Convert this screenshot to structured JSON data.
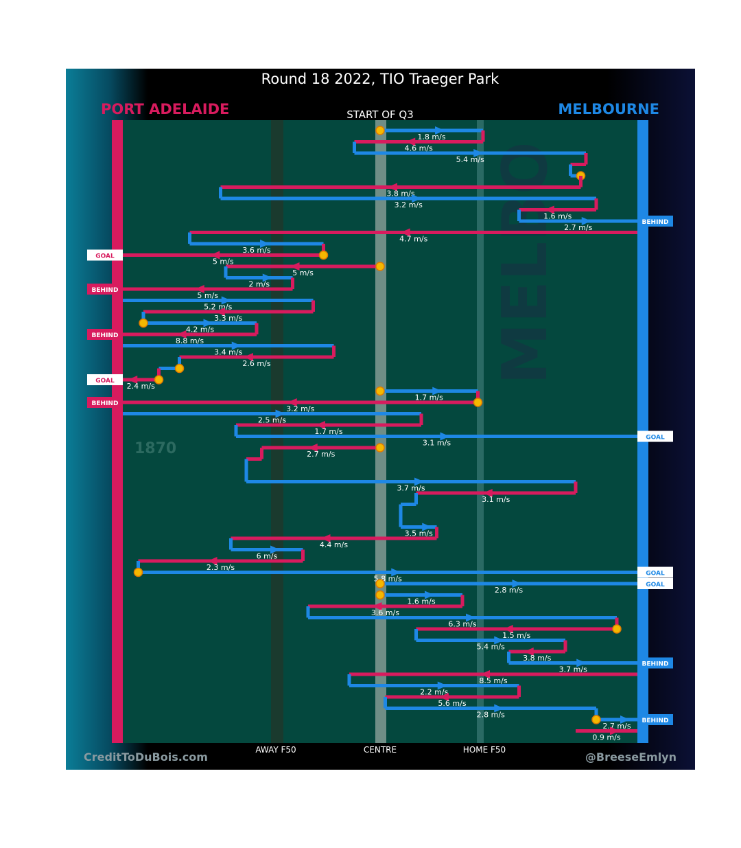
{
  "title": "Round 18 2022, TIO Traeger Park",
  "subtitle": "START OF Q3",
  "teams": {
    "left": {
      "name": "PORT ADELAIDE",
      "color": "#d81b5e"
    },
    "right": {
      "name": "MELBOURNE",
      "color": "#1e88e5"
    }
  },
  "zones": [
    "AWAY F50",
    "CENTRE",
    "HOME F50"
  ],
  "credits": {
    "left": "CreditToDuBois.com",
    "right": "@BreeseEmlyn"
  },
  "watermarks": {
    "left_year": "1870",
    "right_text": "MELBO"
  },
  "colors": {
    "field": "#04483e",
    "port": "#d81b5e",
    "melbourne": "#1e88e5",
    "dot": "#f5b800"
  },
  "chart_data": {
    "type": "diagram",
    "x_axis": {
      "min": 0,
      "max": 1,
      "labels": {
        "AWAY F50": 0.3,
        "CENTRE": 0.5,
        "HOME F50": 0.7
      }
    },
    "legs": [
      {
        "team": "M",
        "x0": 0.5,
        "x1": 0.7,
        "y": 0,
        "label": "1.8 m/s",
        "start_dot": true
      },
      {
        "team": "P",
        "x0": 0.7,
        "x1": 0.45,
        "y": 1,
        "label": "4.6 m/s"
      },
      {
        "team": "M",
        "x0": 0.45,
        "x1": 0.9,
        "y": 2,
        "label": "5.4 m/s"
      },
      {
        "team": "P",
        "x0": 0.9,
        "x1": 0.87,
        "y": 3,
        "label": ""
      },
      {
        "team": "M",
        "x0": 0.87,
        "x1": 0.89,
        "y": 4,
        "label": "",
        "end_dot": true
      },
      {
        "team": "P",
        "x0": 0.89,
        "x1": 0.19,
        "y": 5,
        "label": "3.8 m/s"
      },
      {
        "team": "M",
        "x0": 0.19,
        "x1": 0.92,
        "y": 6,
        "label": "3.2 m/s"
      },
      {
        "team": "P",
        "x0": 0.92,
        "x1": 0.77,
        "y": 7,
        "label": "1.6 m/s"
      },
      {
        "team": "M",
        "x0": 0.77,
        "x1": 1.0,
        "y": 8,
        "label": "2.7 m/s",
        "outcome": "BEHIND"
      },
      {
        "team": "P",
        "x0": 1.0,
        "x1": 0.13,
        "y": 9,
        "label": "4.7 m/s"
      },
      {
        "team": "M",
        "x0": 0.13,
        "x1": 0.39,
        "y": 10,
        "label": "3.6 m/s"
      },
      {
        "team": "P",
        "x0": 0.39,
        "x1": 0.0,
        "y": 11,
        "label": "5 m/s",
        "start_dot": true,
        "outcome": "GOAL"
      },
      {
        "team": "P",
        "x0": 0.5,
        "x1": 0.2,
        "y": 12,
        "label": "5 m/s",
        "start_dot": true
      },
      {
        "team": "M",
        "x0": 0.2,
        "x1": 0.33,
        "y": 13,
        "label": "2 m/s"
      },
      {
        "team": "P",
        "x0": 0.33,
        "x1": 0.0,
        "y": 14,
        "label": "5 m/s",
        "outcome": "BEHIND"
      },
      {
        "team": "M",
        "x0": 0.0,
        "x1": 0.37,
        "y": 15,
        "label": "5.2 m/s"
      },
      {
        "team": "P",
        "x0": 0.37,
        "x1": 0.04,
        "y": 16,
        "label": "3.3 m/s"
      },
      {
        "team": "M",
        "x0": 0.04,
        "x1": 0.26,
        "y": 17,
        "label": "4.2 m/s",
        "start_dot": true
      },
      {
        "team": "P",
        "x0": 0.26,
        "x1": 0.0,
        "y": 18,
        "label": "8.8 m/s",
        "outcome": "BEHIND"
      },
      {
        "team": "M",
        "x0": 0.0,
        "x1": 0.41,
        "y": 19,
        "label": "3.4 m/s"
      },
      {
        "team": "P",
        "x0": 0.41,
        "x1": 0.11,
        "y": 20,
        "label": "2.6 m/s"
      },
      {
        "team": "M",
        "x0": 0.11,
        "x1": 0.07,
        "y": 21,
        "label": "",
        "start_dot": true
      },
      {
        "team": "P",
        "x0": 0.07,
        "x1": 0.0,
        "y": 22,
        "label": "2.4 m/s",
        "start_dot": true,
        "outcome": "GOAL"
      },
      {
        "team": "M",
        "x0": 0.5,
        "x1": 0.69,
        "y": 23,
        "label": "1.7 m/s",
        "start_dot": true
      },
      {
        "team": "P",
        "x0": 0.69,
        "x1": 0.0,
        "y": 24,
        "label": "3.2 m/s",
        "start_dot": true,
        "outcome": "BEHIND"
      },
      {
        "team": "M",
        "x0": 0.0,
        "x1": 0.58,
        "y": 25,
        "label": "2.5 m/s"
      },
      {
        "team": "P",
        "x0": 0.58,
        "x1": 0.22,
        "y": 26,
        "label": "1.7 m/s"
      },
      {
        "team": "M",
        "x0": 0.22,
        "x1": 1.0,
        "y": 27,
        "label": "3.1 m/s",
        "outcome": "GOAL"
      },
      {
        "team": "P",
        "x0": 0.5,
        "x1": 0.27,
        "y": 28,
        "label": "2.7 m/s",
        "start_dot": true
      },
      {
        "team": "P",
        "x0": 0.27,
        "x1": 0.24,
        "y": 29,
        "label": ""
      },
      {
        "team": "M",
        "x0": 0.24,
        "x1": 0.24,
        "y": 30,
        "label": ""
      },
      {
        "team": "M",
        "x0": 0.24,
        "x1": 0.88,
        "y": 31,
        "label": "3.7 m/s"
      },
      {
        "team": "P",
        "x0": 0.88,
        "x1": 0.57,
        "y": 32,
        "label": "3.1 m/s"
      },
      {
        "team": "M",
        "x0": 0.57,
        "x1": 0.54,
        "y": 33,
        "label": ""
      },
      {
        "team": "M",
        "x0": 0.54,
        "x1": 0.54,
        "y": 34,
        "label": ""
      },
      {
        "team": "M",
        "x0": 0.54,
        "x1": 0.61,
        "y": 35,
        "label": "3.5 m/s"
      },
      {
        "team": "P",
        "x0": 0.61,
        "x1": 0.21,
        "y": 36,
        "label": "4.4 m/s"
      },
      {
        "team": "M",
        "x0": 0.21,
        "x1": 0.35,
        "y": 37,
        "label": "6 m/s"
      },
      {
        "team": "P",
        "x0": 0.35,
        "x1": 0.03,
        "y": 38,
        "label": "2.3 m/s"
      },
      {
        "team": "M",
        "x0": 0.03,
        "x1": 1.0,
        "y": 39,
        "label": "5.8 m/s",
        "start_dot": true,
        "outcome": "GOAL"
      },
      {
        "team": "M",
        "x0": 0.5,
        "x1": 1.0,
        "y": 40,
        "label": "2.8 m/s",
        "start_dot": true,
        "outcome": "GOAL"
      },
      {
        "team": "M",
        "x0": 0.5,
        "x1": 0.66,
        "y": 41,
        "label": "1.6 m/s",
        "start_dot": true
      },
      {
        "team": "P",
        "x0": 0.66,
        "x1": 0.36,
        "y": 42,
        "label": "3.6 m/s"
      },
      {
        "team": "M",
        "x0": 0.36,
        "x1": 0.96,
        "y": 43,
        "label": "6.3 m/s"
      },
      {
        "team": "P",
        "x0": 0.96,
        "x1": 0.57,
        "y": 44,
        "label": "1.5 m/s",
        "start_dot": true
      },
      {
        "team": "M",
        "x0": 0.57,
        "x1": 0.86,
        "y": 45,
        "label": "5.4 m/s"
      },
      {
        "team": "P",
        "x0": 0.86,
        "x1": 0.75,
        "y": 46,
        "label": "3.8 m/s"
      },
      {
        "team": "M",
        "x0": 0.75,
        "x1": 1.0,
        "y": 47,
        "label": "3.7 m/s",
        "outcome": "BEHIND"
      },
      {
        "team": "P",
        "x0": 1.0,
        "x1": 0.44,
        "y": 48,
        "label": "8.5 m/s"
      },
      {
        "team": "M",
        "x0": 0.44,
        "x1": 0.77,
        "y": 49,
        "label": "2.2 m/s"
      },
      {
        "team": "P",
        "x0": 0.77,
        "x1": 0.51,
        "y": 50,
        "label": "5.6 m/s"
      },
      {
        "team": "M",
        "x0": 0.51,
        "x1": 0.92,
        "y": 51,
        "label": "2.8 m/s"
      },
      {
        "team": "M",
        "x0": 0.92,
        "x1": 1.0,
        "y": 52,
        "label": "2.7 m/s",
        "start_dot": true,
        "outcome": "BEHIND"
      },
      {
        "team": "P",
        "x0": 0.88,
        "x1": 1.0,
        "y": 53,
        "label": "0.9 m/s"
      }
    ]
  }
}
